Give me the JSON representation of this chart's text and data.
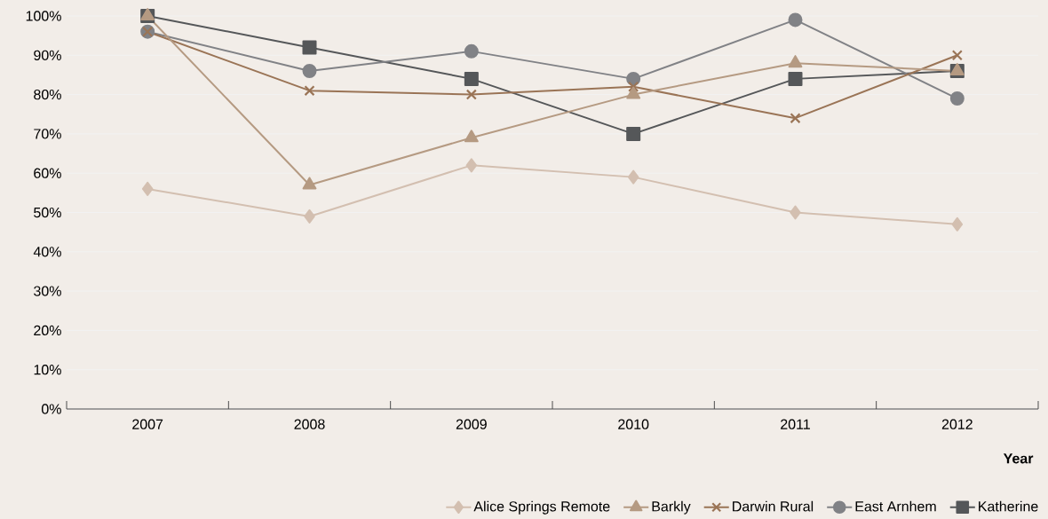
{
  "chart_data": {
    "type": "line",
    "xlabel": "Year",
    "categories": [
      "2007",
      "2008",
      "2009",
      "2010",
      "2011",
      "2012"
    ],
    "series": [
      {
        "name": "Alice Springs Remote",
        "color": "#d3bfb0",
        "marker": "diamond",
        "values": [
          56,
          49,
          62,
          59,
          50,
          47
        ]
      },
      {
        "name": "Barkly",
        "color": "#b59a82",
        "marker": "triangle",
        "values": [
          100,
          57,
          69,
          80,
          88,
          86
        ]
      },
      {
        "name": "Darwin Rural",
        "color": "#9a7456",
        "marker": "cross",
        "values": [
          96,
          81,
          80,
          82,
          74,
          90
        ]
      },
      {
        "name": "East Arnhem",
        "color": "#818286",
        "marker": "circle",
        "values": [
          96,
          86,
          91,
          84,
          99,
          79
        ]
      },
      {
        "name": "Katherine",
        "color": "#555759",
        "marker": "square",
        "values": [
          100,
          92,
          84,
          70,
          84,
          86
        ]
      }
    ],
    "ylim": [
      0,
      100
    ],
    "yticks": [
      {
        "value": 0,
        "label": "0%"
      },
      {
        "value": 10,
        "label": "10%"
      },
      {
        "value": 20,
        "label": "20%"
      },
      {
        "value": 30,
        "label": "30%"
      },
      {
        "value": 40,
        "label": "40%"
      },
      {
        "value": 50,
        "label": "50%"
      },
      {
        "value": 60,
        "label": "60%"
      },
      {
        "value": 70,
        "label": "70%"
      },
      {
        "value": 80,
        "label": "80%"
      },
      {
        "value": 90,
        "label": "90%"
      },
      {
        "value": 100,
        "label": "100%"
      }
    ],
    "grid": "y",
    "legend": "bottom right",
    "line_style": "solid"
  }
}
